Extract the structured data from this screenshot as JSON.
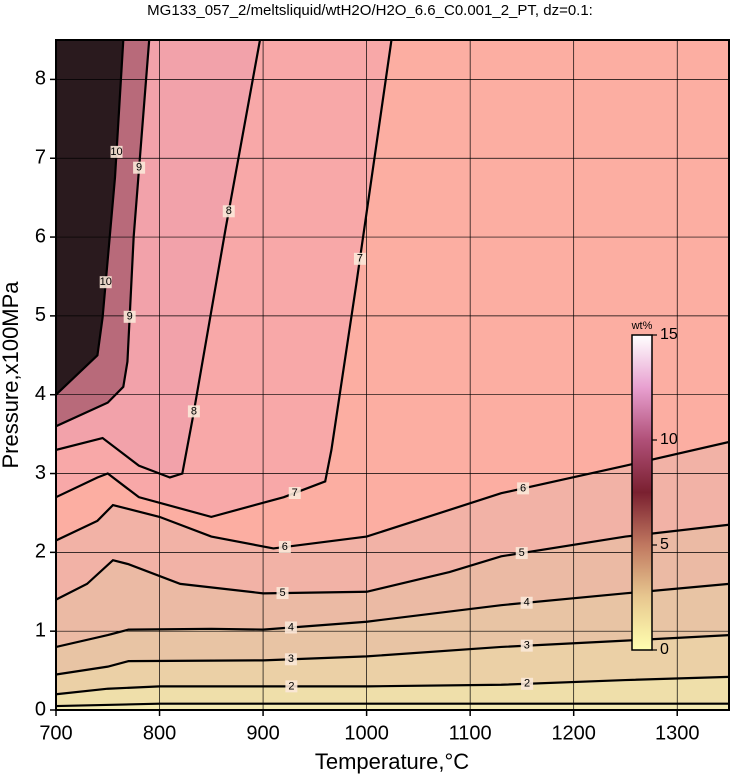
{
  "chart_data": {
    "type": "contour",
    "title": "MG133_057_2/meltsliquid/wtH2O/H2O_6.6_C0.001_2_PT, dz=0.1:",
    "x_label": "Temperature,°C",
    "y_label": "Pressure,x100MPa",
    "xlim": [
      700,
      1350
    ],
    "ylim": [
      0,
      8.5
    ],
    "xticks": [
      700,
      800,
      900,
      1000,
      1100,
      1200,
      1300
    ],
    "yticks": [
      0,
      1,
      2,
      3,
      4,
      5,
      6,
      7,
      8
    ],
    "grid": true,
    "field_color": "#f4ebb4",
    "contours": [
      {
        "level": 1,
        "fill": "#efdfaa",
        "x": [
          700,
          800,
          900,
          1000,
          1100,
          1200,
          1350
        ],
        "y": [
          0.05,
          0.08,
          0.08,
          0.08,
          0.08,
          0.08,
          0.08
        ]
      },
      {
        "level": 2,
        "fill": "#ebd0a6",
        "x": [
          700,
          750,
          800,
          900,
          1000,
          1130,
          1250,
          1350
        ],
        "y": [
          0.2,
          0.27,
          0.3,
          0.3,
          0.3,
          0.32,
          0.38,
          0.42
        ]
      },
      {
        "level": 3,
        "fill": "#e8c4a4",
        "x": [
          700,
          750,
          770,
          900,
          1000,
          1130,
          1250,
          1350
        ],
        "y": [
          0.45,
          0.55,
          0.62,
          0.63,
          0.68,
          0.8,
          0.88,
          0.95
        ]
      },
      {
        "level": 4,
        "fill": "#ebbaa4",
        "x": [
          700,
          750,
          770,
          850,
          900,
          1000,
          1130,
          1250,
          1350
        ],
        "y": [
          0.8,
          0.95,
          1.02,
          1.03,
          1.02,
          1.12,
          1.33,
          1.48,
          1.6
        ]
      },
      {
        "level": 5,
        "fill": "#f2b2a6",
        "x": [
          700,
          730,
          755,
          770,
          820,
          900,
          1000,
          1080,
          1130,
          1250,
          1350
        ],
        "y": [
          1.4,
          1.6,
          1.9,
          1.85,
          1.6,
          1.48,
          1.5,
          1.75,
          1.95,
          2.2,
          2.35
        ]
      },
      {
        "level": 6,
        "fill": "#fcaea2",
        "x": [
          700,
          740,
          755,
          800,
          850,
          910,
          1000,
          1130,
          1250,
          1350
        ],
        "y": [
          2.15,
          2.4,
          2.6,
          2.45,
          2.2,
          2.05,
          2.2,
          2.75,
          3.1,
          3.4
        ]
      },
      {
        "level": 7,
        "fill": "#f8a8a8",
        "x": [
          700,
          740,
          750,
          780,
          850,
          920,
          960,
          966,
          990,
          1024
        ],
        "y": [
          2.7,
          2.95,
          3.0,
          2.7,
          2.45,
          2.7,
          2.9,
          3.3,
          5.4,
          8.5
        ]
      },
      {
        "level": 8,
        "fill": "#f2a2aa",
        "x": [
          700,
          745,
          780,
          810,
          822,
          832,
          864,
          897
        ],
        "y": [
          3.3,
          3.45,
          3.1,
          2.95,
          3.0,
          3.7,
          6.12,
          8.5
        ]
      },
      {
        "level": 9,
        "fill": "#b86a7a",
        "x": [
          700,
          750,
          765,
          769,
          775,
          790
        ],
        "y": [
          3.6,
          3.9,
          4.1,
          4.42,
          6.0,
          8.5
        ]
      },
      {
        "level": 10,
        "fill": "#2a1a1e",
        "x": [
          700,
          740,
          745,
          757,
          765
        ],
        "y": [
          4.0,
          4.5,
          4.98,
          6.76,
          8.5
        ]
      }
    ],
    "colorbar": {
      "label": "wt%",
      "lim": [
        0,
        15
      ],
      "ticks": [
        0,
        5,
        10,
        15
      ],
      "colors": [
        "#ffffb0",
        "#e8c890",
        "#c07860",
        "#7a2030",
        "#b05078",
        "#e8a0d0",
        "#ffffff"
      ]
    }
  }
}
